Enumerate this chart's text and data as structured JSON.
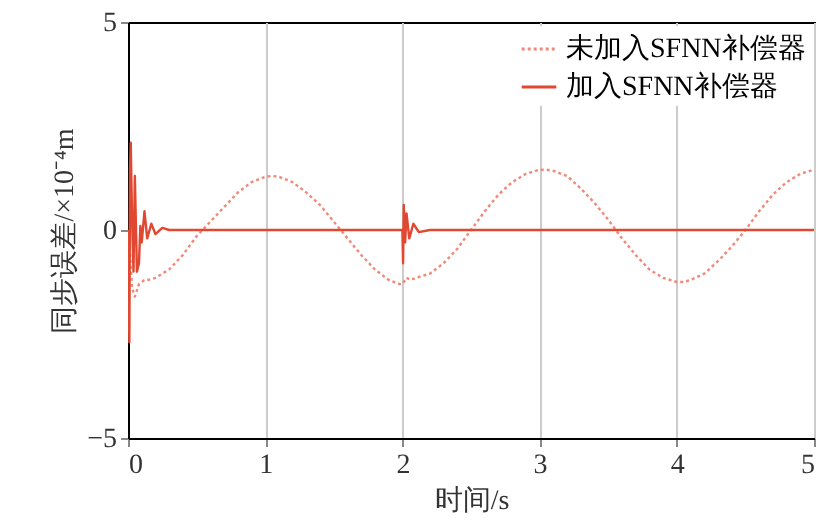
{
  "chart_data": {
    "type": "line",
    "xlabel": "时间/s",
    "ylabel": "同步误差/×10⁻⁴m",
    "xlim": [
      0,
      5
    ],
    "xticks": [
      0,
      1,
      2,
      3,
      4,
      5
    ],
    "ylim": [
      -5,
      5
    ],
    "yticks": [
      -5,
      0,
      5
    ],
    "grid": "x",
    "legend": "top right",
    "marker": "none",
    "series": [
      {
        "name": "未加入SFNN补偿器",
        "color": "#f08a78",
        "line_style": "dotted",
        "x": [
          0,
          0.01,
          0.03,
          0.05,
          0.08,
          0.12,
          0.15,
          0.2,
          0.3,
          0.4,
          0.5,
          0.6,
          0.7,
          0.8,
          0.9,
          1.0,
          1.05,
          1.1,
          1.2,
          1.3,
          1.4,
          1.5,
          1.6,
          1.7,
          1.8,
          1.9,
          1.98,
          2.0,
          2.03,
          2.06,
          2.1,
          2.2,
          2.3,
          2.4,
          2.5,
          2.6,
          2.7,
          2.8,
          2.9,
          3.0,
          3.05,
          3.1,
          3.2,
          3.3,
          3.4,
          3.5,
          3.6,
          3.7,
          3.8,
          3.9,
          4.0,
          4.05,
          4.1,
          4.2,
          4.3,
          4.4,
          4.5,
          4.6,
          4.7,
          4.8,
          4.9,
          5.0
        ],
        "values": [
          0,
          -0.3,
          -1.4,
          -1.6,
          -1.3,
          -1.2,
          -1.2,
          -1.15,
          -0.95,
          -0.6,
          -0.15,
          0.2,
          0.55,
          0.9,
          1.15,
          1.28,
          1.3,
          1.28,
          1.15,
          0.9,
          0.6,
          0.2,
          -0.2,
          -0.6,
          -0.95,
          -1.2,
          -1.3,
          -1.3,
          -1.15,
          -1.2,
          -1.15,
          -1.05,
          -0.8,
          -0.45,
          0,
          0.45,
          0.85,
          1.15,
          1.35,
          1.45,
          1.45,
          1.42,
          1.3,
          1.0,
          0.65,
          0.25,
          -0.2,
          -0.6,
          -0.95,
          -1.15,
          -1.25,
          -1.25,
          -1.2,
          -1.05,
          -0.75,
          -0.4,
          0,
          0.45,
          0.85,
          1.15,
          1.35,
          1.45
        ]
      },
      {
        "name": "加入SFNN补偿器",
        "color": "#e04832",
        "line_style": "solid",
        "x": [
          0,
          0.005,
          0.01,
          0.015,
          0.02,
          0.03,
          0.04,
          0.05,
          0.065,
          0.08,
          0.09,
          0.1,
          0.12,
          0.14,
          0.17,
          0.2,
          0.25,
          0.3,
          2.0,
          2.005,
          2.01,
          2.02,
          2.03,
          2.05,
          2.08,
          2.12,
          2.2,
          5.0
        ],
        "values": [
          0,
          -1.5,
          -2.7,
          1.5,
          2.1,
          0.2,
          -1.0,
          1.3,
          -1.0,
          -0.8,
          0.1,
          -0.3,
          0.45,
          -0.2,
          0.15,
          -0.1,
          0.05,
          0,
          0,
          -0.8,
          0.6,
          -0.3,
          0.4,
          -0.2,
          0.15,
          -0.05,
          0,
          0
        ]
      }
    ]
  }
}
